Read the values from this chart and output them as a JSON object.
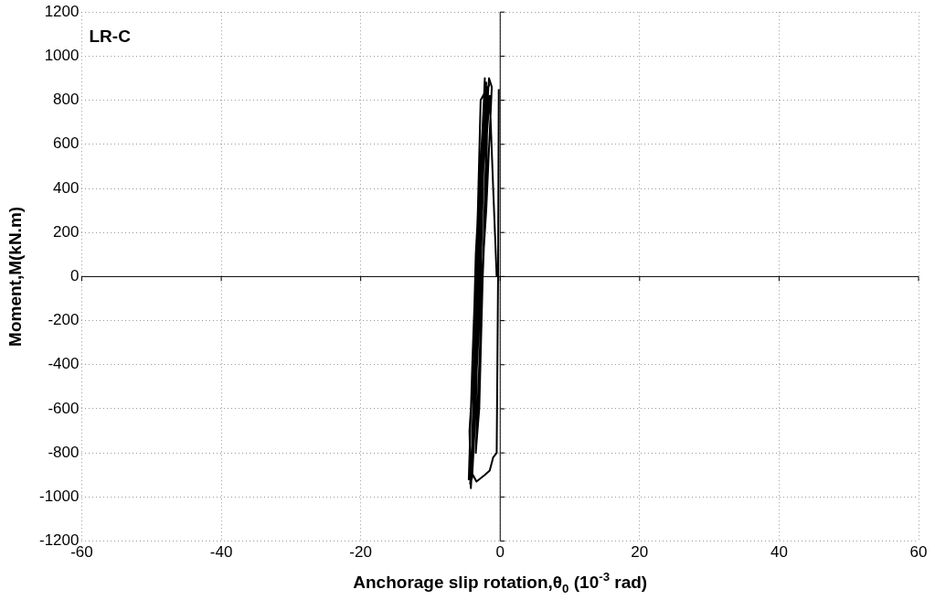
{
  "chart_data": {
    "type": "line",
    "xlabel": "Anchorage slip rotation,θ$_{0}$ (10$^{-3}$ rad)",
    "ylabel": "Moment,M(kN.m)",
    "annotations": [
      "LR-C"
    ],
    "series": [
      {
        "color": "#000000",
        "x": [
          -0.5,
          -1,
          -1.5,
          -2,
          -2.5,
          -3,
          -3.5,
          -3,
          -2.5,
          -2,
          -1.8,
          -2.5,
          -3,
          -3.5,
          -4,
          -3.5,
          -3,
          -2.5,
          -2,
          -2.7,
          -3.3,
          -3.8,
          -4.2,
          -3.8,
          -3.2,
          -2.6,
          -2.2,
          -3,
          -3.6,
          -4,
          -4.5,
          -4,
          -3.2,
          -2.8,
          -1.6,
          -2.4,
          -3.5,
          -4,
          -4.4,
          -4.2,
          -3.6,
          -2.8,
          -2.4,
          -1.6,
          -1.2,
          -2,
          -3,
          -3.8,
          -4.3,
          -3.9,
          -3.4,
          -2.2,
          -1.5,
          -1,
          -0.5,
          -0.3,
          -0.2
        ],
        "values": [
          0,
          400,
          820,
          600,
          0,
          -400,
          -800,
          -600,
          0,
          400,
          850,
          500,
          0,
          -500,
          -900,
          -600,
          0,
          500,
          880,
          400,
          -100,
          -600,
          -950,
          -500,
          100,
          600,
          900,
          300,
          -300,
          -800,
          -920,
          -400,
          300,
          800,
          870,
          750,
          100,
          -500,
          -700,
          -960,
          -600,
          0,
          500,
          900,
          860,
          300,
          -200,
          -700,
          -940,
          -900,
          -930,
          -900,
          -880,
          -820,
          -800,
          0,
          850
        ]
      }
    ],
    "xlim": [
      -60,
      60
    ],
    "xticks": [
      -60,
      -40,
      -20,
      0,
      20,
      40,
      60
    ],
    "ylim": [
      -1200,
      1200
    ],
    "yticks": [
      -1200,
      -1000,
      -800,
      -600,
      -400,
      -200,
      0,
      200,
      400,
      600,
      800,
      1000,
      1200
    ],
    "grid": true,
    "legend": false,
    "marker": "none",
    "line_style": "solid"
  }
}
